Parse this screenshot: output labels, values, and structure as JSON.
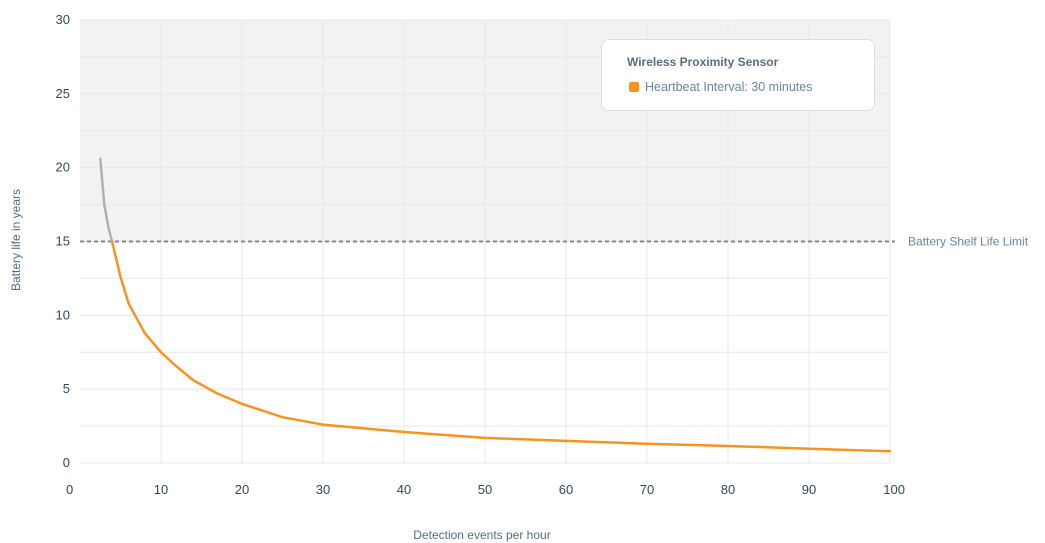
{
  "chart_data": {
    "type": "line",
    "xlabel": "Detection events per hour",
    "ylabel": "Battery life in years",
    "xlim": [
      0,
      100
    ],
    "ylim": [
      0,
      30
    ],
    "x_ticks": [
      0,
      10,
      20,
      30,
      40,
      50,
      60,
      70,
      80,
      90,
      100
    ],
    "y_ticks": [
      0,
      5,
      10,
      15,
      20,
      25,
      30
    ],
    "grid": true,
    "legend": {
      "position": "top-right",
      "title": "Wireless Proximity Sensor",
      "entries": [
        {
          "label": "Heartbeat Interval: 30 minutes",
          "color": "#f7931e"
        }
      ]
    },
    "reference_lines": [
      {
        "y": 15,
        "label": "Battery Shelf Life Limit",
        "style": "dashed",
        "color": "#808890"
      }
    ],
    "shaded_region": {
      "y_from": 15,
      "y_to": 30,
      "color": "#f2f2f2"
    },
    "series": [
      {
        "name": "Heartbeat Interval: 30 minutes",
        "color": "#f7931e",
        "color_above_limit": "#b0b0b0",
        "x": [
          2.5,
          3,
          3.5,
          4,
          5,
          6,
          7,
          8,
          10,
          12,
          14,
          17,
          20,
          25,
          30,
          40,
          50,
          60,
          70,
          80,
          90,
          100
        ],
        "y": [
          20.6,
          17.5,
          16.0,
          14.9,
          12.6,
          10.8,
          9.8,
          8.8,
          7.5,
          6.5,
          5.6,
          4.7,
          4.0,
          3.1,
          2.6,
          2.1,
          1.7,
          1.5,
          1.3,
          1.15,
          0.97,
          0.8
        ]
      }
    ]
  }
}
